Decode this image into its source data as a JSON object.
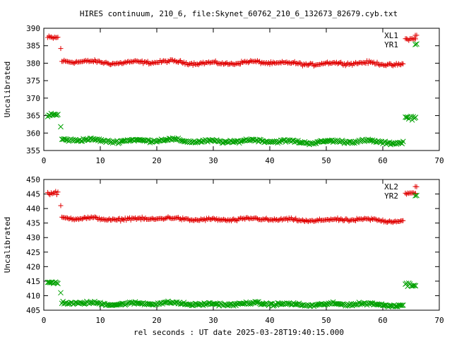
{
  "chart_data": {
    "title": "HIRES continuum, 210_6, file:Skynet_60762_210_6_132673_82679.cyb.txt",
    "xlabel": "rel seconds : UT date 2025-03-28T19:40:15.000",
    "colors": {
      "series1": "#e00000",
      "series2": "#00a000"
    },
    "panels": [
      {
        "type": "scatter",
        "ylabel": "Uncalibrated",
        "xlim": [
          0,
          70
        ],
        "ylim": [
          355,
          390
        ],
        "xticks": [
          "0",
          "10",
          "20",
          "30",
          "40",
          "50",
          "60",
          "70"
        ],
        "yticks": [
          "355",
          "360",
          "365",
          "370",
          "375",
          "380",
          "385",
          "390"
        ],
        "legend_position": "top-right",
        "series": [
          {
            "name": "XL1",
            "marker": "plus",
            "color": "#e00000",
            "segments": [
              {
                "x_start": 0.7,
                "x_end": 2.6,
                "mean": 387.3,
                "noise": 0.5
              },
              {
                "x": 3.0,
                "y": 384.2
              },
              {
                "x_start": 3.2,
                "x_end": 63.6,
                "mean": 380.4,
                "noise": 0.35,
                "drift": -0.6
              },
              {
                "x_start": 64.0,
                "x_end": 65.8,
                "mean": 386.9,
                "noise": 0.3
              },
              {
                "x": 66.0,
                "y": 388.0
              }
            ]
          },
          {
            "name": "YR1",
            "marker": "cross",
            "color": "#00a000",
            "segments": [
              {
                "x_start": 0.7,
                "x_end": 2.6,
                "mean": 365.2,
                "noise": 0.5
              },
              {
                "x": 3.0,
                "y": 361.8
              },
              {
                "x_start": 3.2,
                "x_end": 63.6,
                "mean": 358.0,
                "noise": 0.35,
                "drift": -0.6
              },
              {
                "x_start": 64.0,
                "x_end": 65.8,
                "mean": 364.4,
                "noise": 0.5
              },
              {
                "x": 66.0,
                "y": 385.5
              }
            ]
          }
        ]
      },
      {
        "type": "scatter",
        "ylabel": "Uncalibrated",
        "xlim": [
          0,
          70
        ],
        "ylim": [
          405,
          450
        ],
        "xticks": [
          "0",
          "10",
          "20",
          "30",
          "40",
          "50",
          "60",
          "70"
        ],
        "yticks": [
          "405",
          "410",
          "415",
          "420",
          "425",
          "430",
          "435",
          "440",
          "445",
          "450"
        ],
        "legend_position": "top-right",
        "series": [
          {
            "name": "XL2",
            "marker": "plus",
            "color": "#e00000",
            "segments": [
              {
                "x_start": 0.7,
                "x_end": 2.6,
                "mean": 445.3,
                "noise": 0.5
              },
              {
                "x": 3.0,
                "y": 441.0
              },
              {
                "x_start": 3.2,
                "x_end": 63.6,
                "mean": 436.6,
                "noise": 0.4,
                "drift": -0.7
              },
              {
                "x_start": 64.0,
                "x_end": 65.8,
                "mean": 445.2,
                "noise": 0.3
              },
              {
                "x": 66.0,
                "y": 447.5
              }
            ]
          },
          {
            "name": "YR2",
            "marker": "cross",
            "color": "#00a000",
            "segments": [
              {
                "x_start": 0.7,
                "x_end": 2.6,
                "mean": 414.5,
                "noise": 0.4
              },
              {
                "x": 3.0,
                "y": 411.0
              },
              {
                "x_start": 3.2,
                "x_end": 63.6,
                "mean": 407.4,
                "noise": 0.4,
                "drift": -0.5
              },
              {
                "x_start": 64.0,
                "x_end": 65.8,
                "mean": 413.8,
                "noise": 0.6
              },
              {
                "x": 66.0,
                "y": 444.5
              }
            ]
          }
        ]
      }
    ]
  }
}
